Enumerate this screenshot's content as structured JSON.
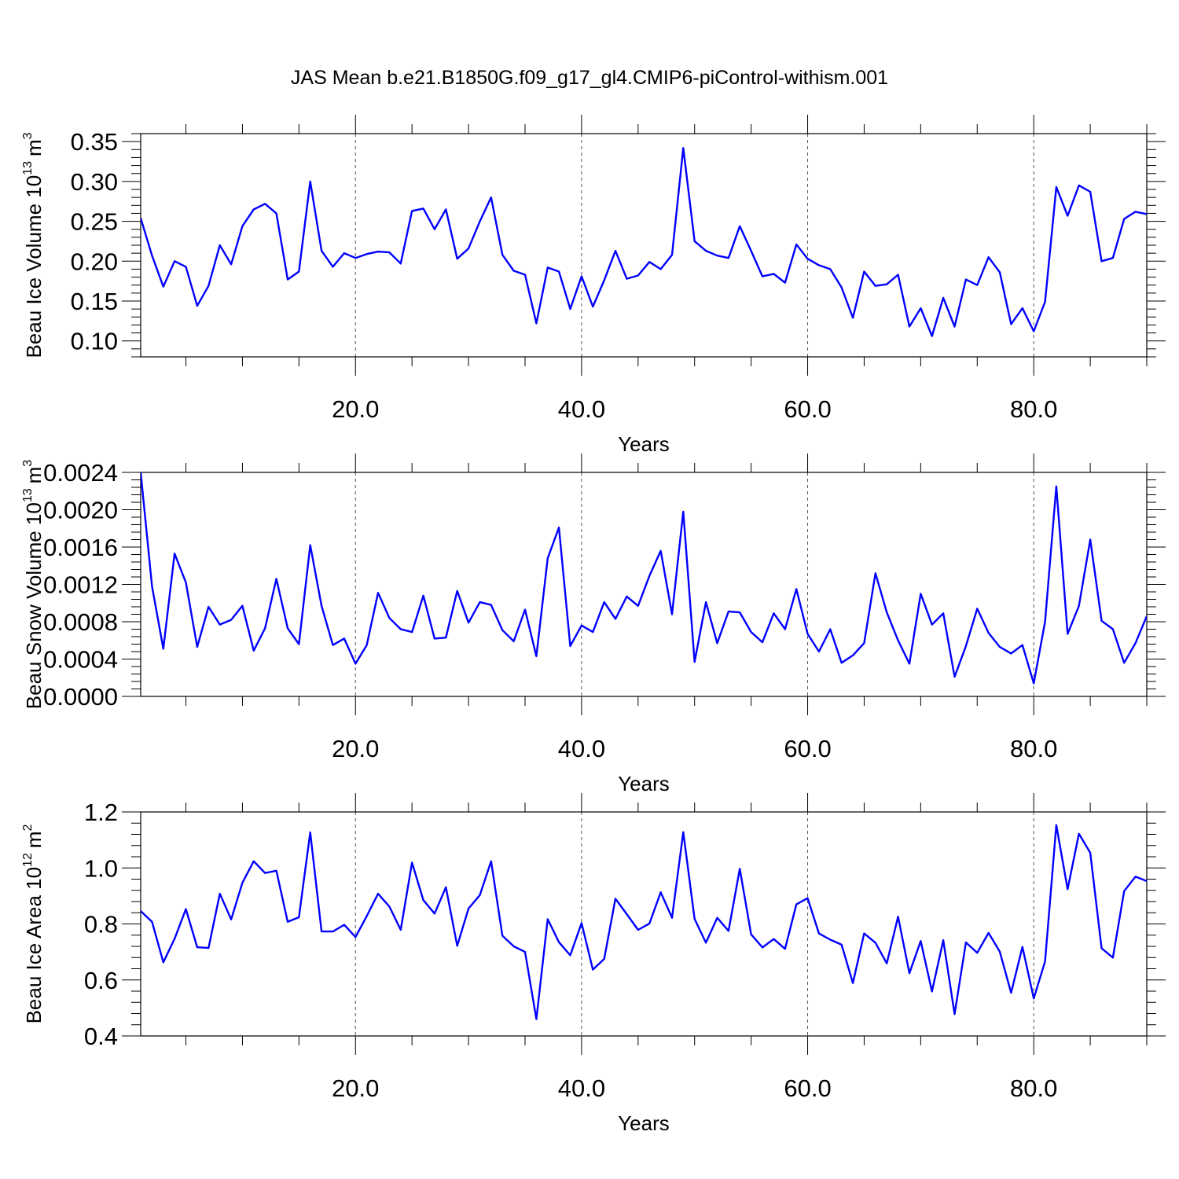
{
  "title": "JAS Mean b.e21.B1850G.f09_g17_gl4.CMIP6-piControl-withism.001",
  "colors": {
    "series": "#0000ff",
    "axis": "#000000",
    "grid": "#555555"
  },
  "chart_data": [
    {
      "type": "line",
      "xlabel": "Years",
      "ylabel": "Beau Ice Volume 10",
      "ylabel_exp": "13",
      "ylabel_unit": "m",
      "ylabel_unit_exp": "3",
      "xlim": [
        1,
        90
      ],
      "ylim": [
        0.08,
        0.36
      ],
      "yticks": [
        0.1,
        0.15,
        0.2,
        0.25,
        0.3,
        0.35
      ],
      "yticklabels": [
        "0.10",
        "0.15",
        "0.20",
        "0.25",
        "0.30",
        "0.35"
      ],
      "ygrid": false,
      "xticks": [
        20,
        40,
        60,
        80
      ],
      "xticklabels": [
        "20.0",
        "40.0",
        "60.0",
        "80.0"
      ],
      "xgrid": true,
      "x_start": 1,
      "values": [
        0.254,
        0.207,
        0.168,
        0.2,
        0.193,
        0.144,
        0.169,
        0.22,
        0.196,
        0.244,
        0.265,
        0.272,
        0.26,
        0.177,
        0.187,
        0.3,
        0.213,
        0.193,
        0.21,
        0.204,
        0.209,
        0.212,
        0.211,
        0.197,
        0.263,
        0.266,
        0.24,
        0.265,
        0.203,
        0.216,
        0.25,
        0.28,
        0.208,
        0.188,
        0.183,
        0.122,
        0.192,
        0.187,
        0.14,
        0.181,
        0.143,
        0.176,
        0.213,
        0.178,
        0.182,
        0.199,
        0.19,
        0.208,
        0.342,
        0.225,
        0.213,
        0.207,
        0.204,
        0.244,
        0.213,
        0.181,
        0.184,
        0.173,
        0.221,
        0.203,
        0.195,
        0.19,
        0.167,
        0.129,
        0.187,
        0.169,
        0.171,
        0.183,
        0.118,
        0.141,
        0.106,
        0.154,
        0.118,
        0.177,
        0.17,
        0.205,
        0.186,
        0.121,
        0.141,
        0.112,
        0.149,
        0.293,
        0.257,
        0.295,
        0.287,
        0.2,
        0.204,
        0.253,
        0.262,
        0.259
      ]
    },
    {
      "type": "line",
      "xlabel": "Years",
      "ylabel": "Beau Snow Volume 10",
      "ylabel_exp": "13",
      "ylabel_unit": "m",
      "ylabel_unit_exp": "3",
      "xlim": [
        1,
        90
      ],
      "ylim": [
        0.0,
        0.0024
      ],
      "yticks": [
        0.0,
        0.0004,
        0.0008,
        0.0012,
        0.0016,
        0.002,
        0.0024
      ],
      "yticklabels": [
        "0.0000",
        "0.0004",
        "0.0008",
        "0.0012",
        "0.0016",
        "0.0020",
        "0.0024"
      ],
      "ygrid": false,
      "xticks": [
        20,
        40,
        60,
        80
      ],
      "xticklabels": [
        "20.0",
        "40.0",
        "60.0",
        "80.0"
      ],
      "xgrid": true,
      "x_start": 1,
      "values": [
        0.0024,
        0.00118,
        0.00051,
        0.00153,
        0.00122,
        0.00053,
        0.00096,
        0.00077,
        0.00082,
        0.00097,
        0.00049,
        0.00073,
        0.00126,
        0.00073,
        0.00056,
        0.00162,
        0.00097,
        0.00055,
        0.00062,
        0.00035,
        0.00055,
        0.00111,
        0.00084,
        0.00072,
        0.00069,
        0.00108,
        0.00062,
        0.00063,
        0.00113,
        0.00079,
        0.00101,
        0.00098,
        0.00071,
        0.00059,
        0.00093,
        0.00043,
        0.00148,
        0.00181,
        0.00054,
        0.00076,
        0.00069,
        0.00101,
        0.00083,
        0.00107,
        0.00097,
        0.00129,
        0.00156,
        0.00088,
        0.00198,
        0.00037,
        0.00101,
        0.00057,
        0.00091,
        0.0009,
        0.00069,
        0.00058,
        0.00089,
        0.00072,
        0.00115,
        0.00067,
        0.00048,
        0.00072,
        0.00036,
        0.00044,
        0.00057,
        0.00132,
        0.0009,
        0.0006,
        0.00035,
        0.0011,
        0.00077,
        0.00089,
        0.00021,
        0.00054,
        0.00094,
        0.00068,
        0.00053,
        0.00046,
        0.00055,
        0.00014,
        0.0008,
        0.00225,
        0.00067,
        0.00097,
        0.00168,
        0.00081,
        0.00072,
        0.00036,
        0.00057,
        0.00086
      ]
    },
    {
      "type": "line",
      "xlabel": "Years",
      "ylabel": "Beau Ice Area 10",
      "ylabel_exp": "12",
      "ylabel_unit": "m",
      "ylabel_unit_exp": "2",
      "xlim": [
        1,
        90
      ],
      "ylim": [
        0.4,
        1.2
      ],
      "yticks": [
        0.4,
        0.6,
        0.8,
        1.0,
        1.2
      ],
      "yticklabels": [
        "0.4",
        "0.6",
        "0.8",
        "1.0",
        "1.2"
      ],
      "ygrid": false,
      "xticks": [
        20,
        40,
        60,
        80
      ],
      "xticklabels": [
        "20.0",
        "40.0",
        "60.0",
        "80.0"
      ],
      "xgrid": true,
      "x_start": 1,
      "values": [
        0.846,
        0.808,
        0.663,
        0.747,
        0.853,
        0.717,
        0.714,
        0.908,
        0.816,
        0.947,
        1.024,
        0.982,
        0.99,
        0.808,
        0.824,
        1.127,
        0.773,
        0.773,
        0.797,
        0.753,
        0.828,
        0.908,
        0.862,
        0.779,
        1.019,
        0.885,
        0.837,
        0.931,
        0.722,
        0.855,
        0.903,
        1.024,
        0.758,
        0.72,
        0.7,
        0.46,
        0.817,
        0.735,
        0.688,
        0.803,
        0.637,
        0.675,
        0.89,
        0.835,
        0.779,
        0.801,
        0.913,
        0.822,
        1.128,
        0.818,
        0.733,
        0.822,
        0.775,
        0.997,
        0.763,
        0.716,
        0.746,
        0.711,
        0.87,
        0.892,
        0.766,
        0.744,
        0.726,
        0.589,
        0.766,
        0.733,
        0.659,
        0.826,
        0.624,
        0.739,
        0.559,
        0.742,
        0.478,
        0.734,
        0.697,
        0.768,
        0.701,
        0.554,
        0.718,
        0.534,
        0.666,
        1.153,
        0.924,
        1.122,
        1.054,
        0.713,
        0.68,
        0.917,
        0.969,
        0.953
      ]
    }
  ]
}
